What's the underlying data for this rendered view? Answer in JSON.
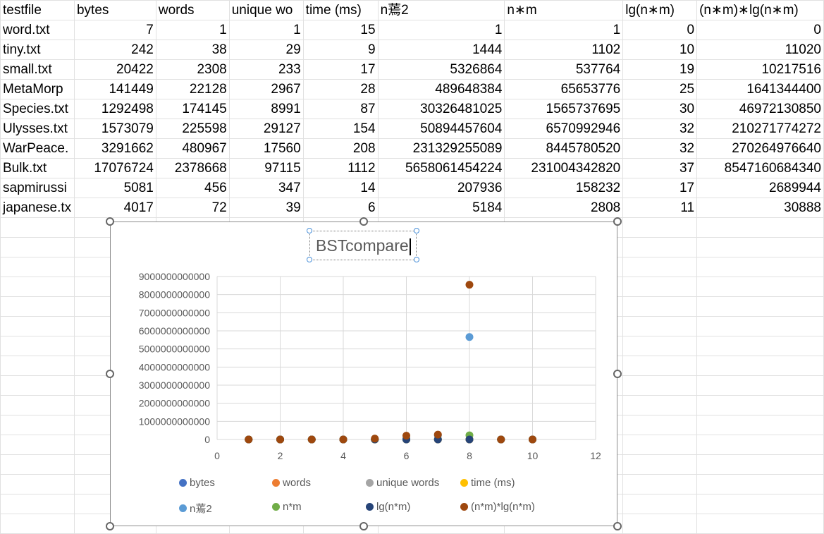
{
  "sheet": {
    "headers": [
      "testfile",
      "bytes",
      "words",
      "unique wo",
      "time (ms)",
      "n蔫2",
      "n∗m",
      "lg(n∗m)",
      "(n∗m)∗lg(n∗m)"
    ],
    "rows": [
      [
        "word.txt",
        "7",
        "1",
        "1",
        "15",
        "1",
        "1",
        "0",
        "0"
      ],
      [
        "tiny.txt",
        "242",
        "38",
        "29",
        "9",
        "1444",
        "1102",
        "10",
        "11020"
      ],
      [
        "small.txt",
        "20422",
        "2308",
        "233",
        "17",
        "5326864",
        "537764",
        "19",
        "10217516"
      ],
      [
        "MetaMorp",
        "141449",
        "22128",
        "2967",
        "28",
        "489648384",
        "65653776",
        "25",
        "1641344400"
      ],
      [
        "Species.txt",
        "1292498",
        "174145",
        "8991",
        "87",
        "30326481025",
        "1565737695",
        "30",
        "46972130850"
      ],
      [
        "Ulysses.txt",
        "1573079",
        "225598",
        "29127",
        "154",
        "50894457604",
        "6570992946",
        "32",
        "210271774272"
      ],
      [
        "WarPeace.",
        "3291662",
        "480967",
        "17560",
        "208",
        "231329255089",
        "8445780520",
        "32",
        "270264976640"
      ],
      [
        "Bulk.txt",
        "17076724",
        "2378668",
        "97115",
        "1112",
        "5658061454224",
        "231004342820",
        "37",
        "8547160684340"
      ],
      [
        "sapmirussi",
        "5081",
        "456",
        "347",
        "14",
        "207936",
        "158232",
        "17",
        "2689944"
      ],
      [
        "japanese.tx",
        "4017",
        "72",
        "39",
        "6",
        "5184",
        "2808",
        "11",
        "30888"
      ]
    ]
  },
  "chart": {
    "title": "BSTcompare",
    "y_tick_labels": [
      "9000000000000",
      "8000000000000",
      "7000000000000",
      "6000000000000",
      "5000000000000",
      "4000000000000",
      "3000000000000",
      "2000000000000",
      "1000000000000",
      "0"
    ],
    "x_tick_labels": [
      "0",
      "2",
      "4",
      "6",
      "8",
      "10",
      "12"
    ],
    "legend": [
      {
        "label": "bytes",
        "color": "#4472c4"
      },
      {
        "label": "words",
        "color": "#ed7d31"
      },
      {
        "label": "unique words",
        "color": "#a5a5a5"
      },
      {
        "label": "time (ms)",
        "color": "#ffc000"
      },
      {
        "label": "n蔫2",
        "color": "#5b9bd5"
      },
      {
        "label": "n*m",
        "color": "#70ad47"
      },
      {
        "label": "lg(n*m)",
        "color": "#264478"
      },
      {
        "label": "(n*m)*lg(n*m)",
        "color": "#9e480e"
      }
    ]
  },
  "chart_data": {
    "type": "scatter",
    "title": "BSTcompare",
    "xlabel": "",
    "ylabel": "",
    "xlim": [
      0,
      12
    ],
    "ylim": [
      0,
      9000000000000
    ],
    "grid": true,
    "legend_position": "bottom",
    "x": [
      1,
      2,
      3,
      4,
      5,
      6,
      7,
      8,
      9,
      10
    ],
    "series": [
      {
        "name": "bytes",
        "color": "#4472c4",
        "values": [
          7,
          242,
          20422,
          141449,
          1292498,
          1573079,
          3291662,
          17076724,
          5081,
          4017
        ]
      },
      {
        "name": "words",
        "color": "#ed7d31",
        "values": [
          1,
          38,
          2308,
          22128,
          174145,
          225598,
          480967,
          2378668,
          456,
          72
        ]
      },
      {
        "name": "unique words",
        "color": "#a5a5a5",
        "values": [
          1,
          29,
          233,
          2967,
          8991,
          29127,
          17560,
          97115,
          347,
          39
        ]
      },
      {
        "name": "time (ms)",
        "color": "#ffc000",
        "values": [
          15,
          9,
          17,
          28,
          87,
          154,
          208,
          1112,
          14,
          6
        ]
      },
      {
        "name": "n蔫2",
        "color": "#5b9bd5",
        "values": [
          1,
          1444,
          5326864,
          489648384,
          30326481025,
          50894457604,
          231329255089,
          5658061454224,
          207936,
          5184
        ]
      },
      {
        "name": "n*m",
        "color": "#70ad47",
        "values": [
          1,
          1102,
          537764,
          65653776,
          1565737695,
          6570992946,
          8445780520,
          231004342820,
          158232,
          2808
        ]
      },
      {
        "name": "lg(n*m)",
        "color": "#264478",
        "values": [
          0,
          10,
          19,
          25,
          30,
          32,
          32,
          37,
          17,
          11
        ]
      },
      {
        "name": "(n*m)*lg(n*m)",
        "color": "#9e480e",
        "values": [
          0,
          11020,
          10217516,
          1641344400,
          46972130850,
          210271774272,
          270264976640,
          8547160684340,
          2689944,
          30888
        ]
      }
    ]
  }
}
